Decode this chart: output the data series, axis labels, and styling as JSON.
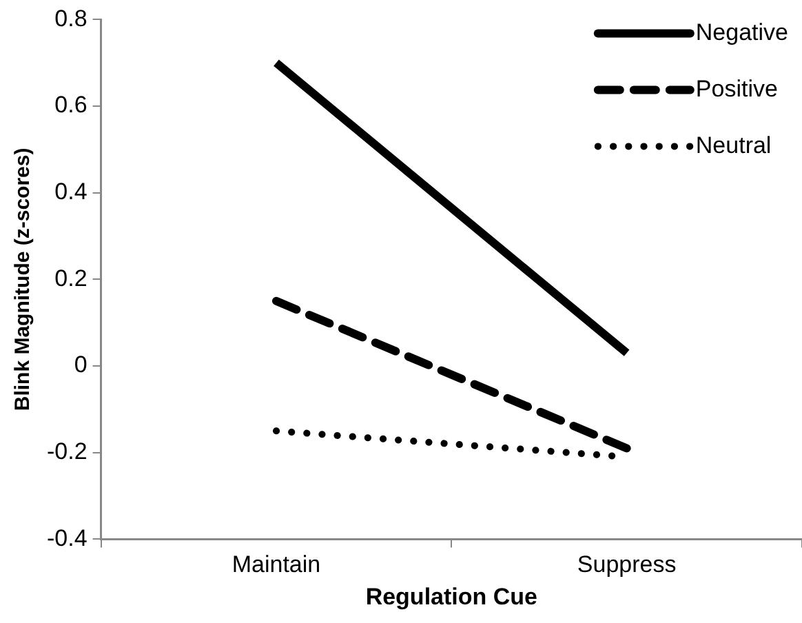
{
  "chart_data": {
    "type": "line",
    "xlabel": "Regulation Cue",
    "ylabel": "Blink Magnitude (z-scores)",
    "categories": [
      "Maintain",
      "Suppress"
    ],
    "series": [
      {
        "name": "Negative",
        "color": "#000000",
        "line_style": "solid",
        "values": [
          0.7,
          0.03
        ]
      },
      {
        "name": "Positive",
        "color": "#000000",
        "line_style": "dashed",
        "values": [
          0.15,
          -0.19
        ]
      },
      {
        "name": "Neutral",
        "color": "#000000",
        "line_style": "dotted",
        "values": [
          -0.15,
          -0.21
        ]
      }
    ],
    "ylim": [
      -0.4,
      0.8
    ],
    "yticks": [
      {
        "value": -0.4,
        "label": "-0.4"
      },
      {
        "value": -0.2,
        "label": "-0.2"
      },
      {
        "value": 0,
        "label": "0"
      },
      {
        "value": 0.2,
        "label": "0.2"
      },
      {
        "value": 0.4,
        "label": "0.4"
      },
      {
        "value": 0.6,
        "label": "0.6"
      },
      {
        "value": 0.8,
        "label": "0.8"
      }
    ],
    "grid": false,
    "legend": "top right",
    "marker": "none"
  }
}
